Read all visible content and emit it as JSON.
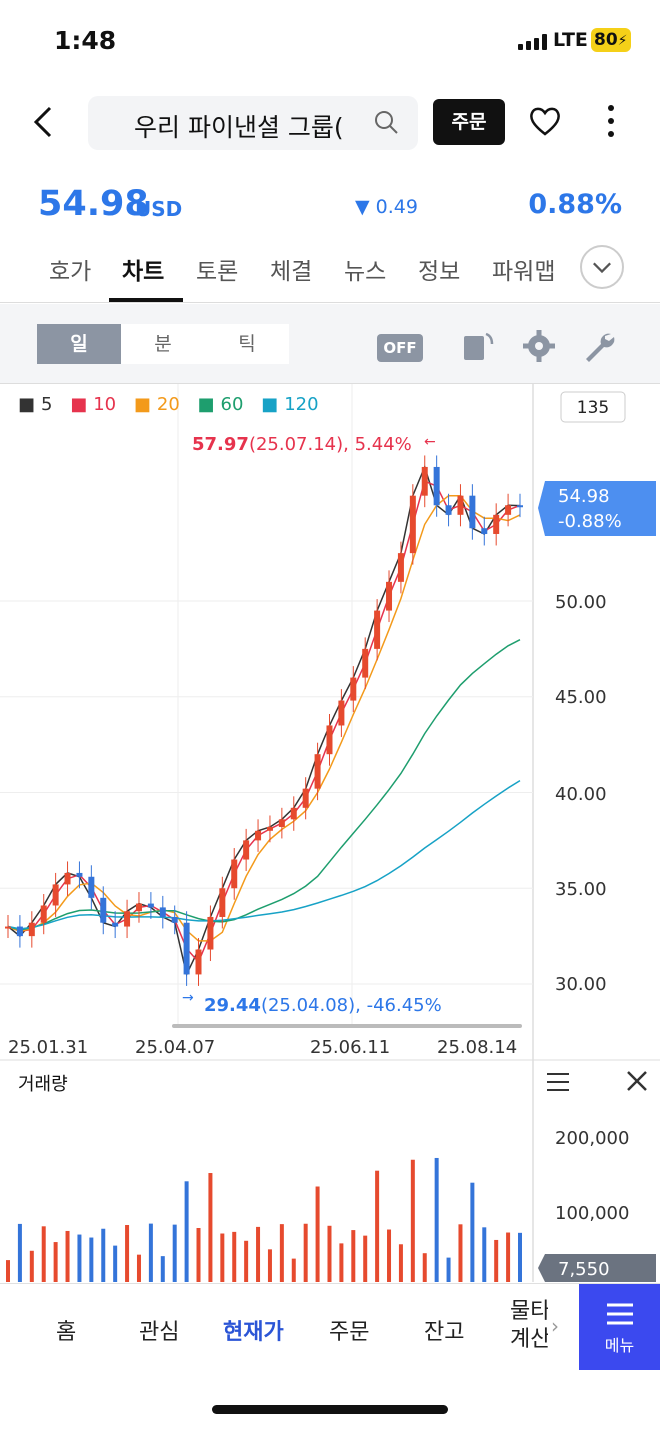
{
  "status": {
    "time": "1:48",
    "network": "LTE",
    "battery": "80"
  },
  "header": {
    "search_text": "우리 파이낸셜 그룹(",
    "order_label": "주문"
  },
  "quote": {
    "price": "54.98",
    "unit": "USD",
    "change": "▼ 0.49",
    "change_pct": "0.88%"
  },
  "tabs": [
    "호가",
    "차트",
    "토론",
    "체결",
    "뉴스",
    "정보",
    "파워맵"
  ],
  "toolbar": {
    "day": "일",
    "minute": "분",
    "tick": "틱",
    "off": "OFF"
  },
  "legend": [
    {
      "label": "5",
      "color": "#333333"
    },
    {
      "label": "10",
      "color": "#e6334d"
    },
    {
      "label": "20",
      "color": "#f39a1b"
    },
    {
      "label": "60",
      "color": "#1e9e6e"
    },
    {
      "label": "120",
      "color": "#17a2c6"
    }
  ],
  "chart": {
    "count": "135",
    "max_label": "57.97",
    "max_rest": "(25.07.14), 5.44%",
    "min_label": "29.44",
    "min_rest": "(25.04.08), -46.45%",
    "current_price": "54.98",
    "current_pct": "-0.88%",
    "volume_title": "거래량",
    "volume_current": "7,550"
  },
  "chart_data": {
    "type": "candlestick",
    "price_axis": {
      "ticks": [
        "50.00",
        "45.00",
        "40.00",
        "35.00",
        "30.00"
      ],
      "range": [
        27.5,
        60
      ]
    },
    "date_ticks": [
      "25.01.31",
      "25.04.07",
      "25.06.11",
      "25.08.14"
    ],
    "volume_axis": {
      "ticks": [
        "200,000",
        "100,000"
      ]
    },
    "close_series": [
      33.0,
      32.5,
      33.2,
      34.1,
      35.2,
      35.8,
      35.6,
      34.5,
      33.2,
      33.0,
      33.8,
      34.2,
      34.0,
      33.5,
      33.2,
      30.5,
      31.8,
      33.5,
      35.0,
      36.5,
      37.5,
      38.0,
      38.2,
      38.6,
      39.2,
      40.2,
      42.0,
      43.5,
      44.8,
      46.0,
      47.5,
      49.5,
      51.0,
      52.5,
      55.5,
      57.0,
      55.0,
      54.5,
      55.5,
      53.8,
      53.5,
      54.5,
      55.0,
      54.98
    ],
    "annotations": {
      "high": 57.97,
      "low": 29.44,
      "last": 54.98
    }
  },
  "bottom_nav": {
    "items": [
      "홈",
      "관심",
      "현재가",
      "주문",
      "잔고",
      "물타기\n계산"
    ],
    "menu": "메뉴"
  }
}
